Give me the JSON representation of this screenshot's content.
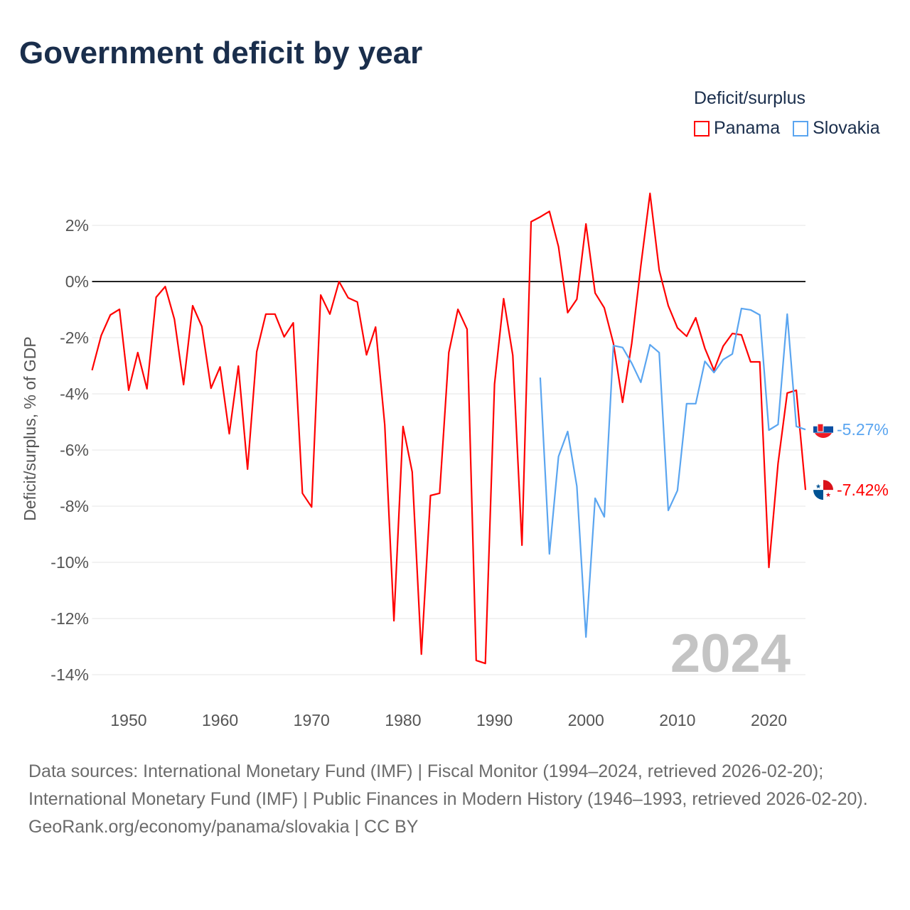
{
  "title": "Government deficit by year",
  "legend": {
    "title": "Deficit/surplus",
    "items": [
      {
        "label": "Panama",
        "color": "#ff0000"
      },
      {
        "label": "Slovakia",
        "color": "#5aa5f0"
      }
    ]
  },
  "chart_data": {
    "type": "line",
    "title": "Government deficit by year",
    "xlabel": "",
    "ylabel": "Deficit/surplus, % of GDP",
    "xlim": [
      1946,
      2024
    ],
    "ylim": [
      -15,
      3.5
    ],
    "x_ticks": [
      1950,
      1960,
      1970,
      1980,
      1990,
      2000,
      2010,
      2020
    ],
    "y_ticks": [
      2,
      0,
      -2,
      -4,
      -6,
      -8,
      -10,
      -12,
      -14
    ],
    "y_tick_labels": [
      "2%",
      "0%",
      "-2%",
      "-4%",
      "-6%",
      "-8%",
      "-10%",
      "-12%",
      "-14%"
    ],
    "year_watermark": "2024",
    "series": [
      {
        "name": "Panama",
        "color": "#ff0000",
        "start_year": 1946,
        "end_label": "-7.42%",
        "values": [
          -3.16,
          -1.92,
          -1.19,
          -0.99,
          -3.87,
          -2.53,
          -3.82,
          -0.56,
          -0.18,
          -1.34,
          -3.67,
          -0.86,
          -1.6,
          -3.8,
          -3.04,
          -5.42,
          -3.01,
          -6.68,
          -2.5,
          -1.16,
          -1.16,
          -1.97,
          -1.47,
          -7.54,
          -8.03,
          -0.48,
          -1.16,
          0.0,
          -0.58,
          -0.73,
          -2.61,
          -1.62,
          -5.11,
          -12.08,
          -5.16,
          -6.78,
          -13.27,
          -7.62,
          -7.54,
          -2.53,
          -0.99,
          -1.7,
          -13.49,
          -13.6,
          -3.65,
          -0.61,
          -2.63,
          -9.39,
          2.13,
          2.3,
          2.5,
          1.24,
          -1.11,
          -0.63,
          2.05,
          -0.41,
          -0.94,
          -2.2,
          -4.3,
          -2.2,
          0.56,
          3.14,
          0.41,
          -0.86,
          -1.65,
          -1.95,
          -1.29,
          -2.38,
          -3.16,
          -2.3,
          -1.85,
          -1.9,
          -2.86,
          -2.86,
          -10.18,
          -6.48,
          -3.97,
          -3.87,
          -7.42
        ]
      },
      {
        "name": "Slovakia",
        "color": "#5aa5f0",
        "start_year": 1995,
        "end_label": "-5.27%",
        "values": [
          -3.42,
          -9.7,
          -6.23,
          -5.34,
          -7.29,
          -12.66,
          -7.72,
          -8.38,
          -2.28,
          -2.35,
          -2.91,
          -3.59,
          -2.25,
          -2.53,
          -8.15,
          -7.44,
          -4.35,
          -4.35,
          -2.84,
          -3.24,
          -2.78,
          -2.58,
          -0.96,
          -1.01,
          -1.19,
          -5.29,
          -5.09,
          -1.16,
          -5.16,
          -5.27
        ]
      }
    ]
  },
  "footer": {
    "sources": "Data sources: International Monetary Fund (IMF) | Fiscal Monitor (1994–2024, retrieved 2026-02-20); International Monetary Fund (IMF) | Public Finances in Modern History (1946–1993, retrieved 2026-02-20).",
    "credit": "GeoRank.org/economy/panama/slovakia | CC BY"
  }
}
